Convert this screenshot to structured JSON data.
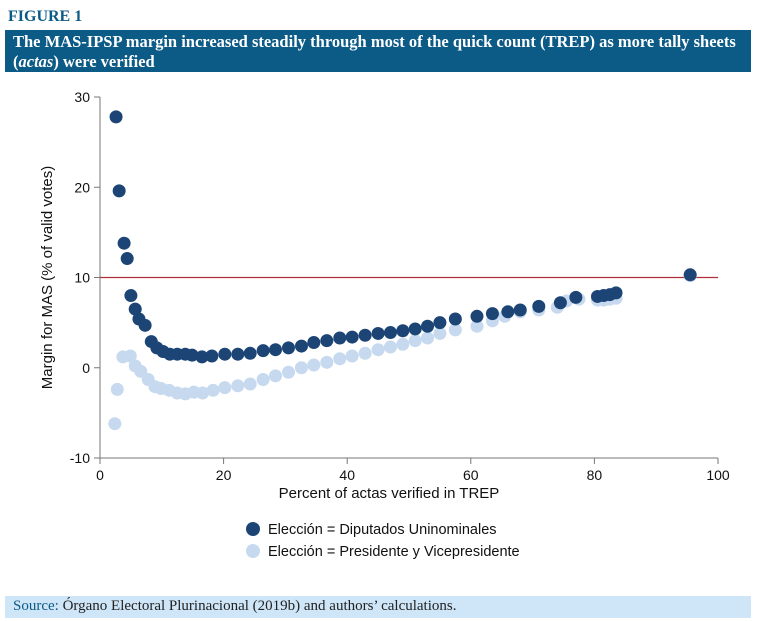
{
  "figure_label": "FIGURE 1",
  "title_part1": "The MAS-IPSP margin increased steadily through most of the quick count (TREP) as more tally sheets (",
  "title_italic": "actas",
  "title_part2": ") were verified",
  "source_label": "Source:",
  "source_text": " Órgano Electoral Plurinacional (2019b) and authors’ calculations.",
  "chart_data": {
    "type": "scatter",
    "xlabel": "Percent of actas verified in TREP",
    "ylabel": "Margin for MAS (% of valid votes)",
    "xlim": [
      0,
      100
    ],
    "ylim": [
      -10,
      30
    ],
    "xticks": [
      0,
      20,
      40,
      60,
      80,
      100
    ],
    "yticks": [
      -10,
      0,
      10,
      20,
      30
    ],
    "reference_line": {
      "y": 10,
      "color": "#b0303a"
    },
    "legend_position": "bottom",
    "series": [
      {
        "name": "Elección = Diputados Uninominales",
        "color": "#1c4576",
        "x": [
          2.6,
          3.1,
          3.9,
          4.4,
          5,
          5.7,
          6.3,
          7.3,
          8.3,
          9.2,
          10.2,
          11.3,
          12.5,
          13.8,
          14.9,
          16.5,
          18.1,
          20.2,
          22.3,
          24.3,
          26.4,
          28.4,
          30.5,
          32.6,
          34.6,
          36.7,
          38.8,
          40.8,
          42.9,
          45,
          47,
          49,
          51,
          53,
          55,
          57.5,
          61,
          63.5,
          66,
          68,
          71,
          74.5,
          77,
          80.5,
          81.5,
          82.5,
          83.5,
          95.5
        ],
        "y": [
          27.8,
          19.6,
          13.8,
          12.1,
          8,
          6.5,
          5.4,
          4.7,
          2.9,
          2.2,
          1.8,
          1.5,
          1.5,
          1.5,
          1.4,
          1.2,
          1.3,
          1.5,
          1.5,
          1.6,
          1.9,
          2,
          2.2,
          2.4,
          2.8,
          3,
          3.3,
          3.4,
          3.6,
          3.8,
          3.9,
          4.1,
          4.3,
          4.6,
          5,
          5.4,
          5.7,
          6,
          6.2,
          6.4,
          6.8,
          7.2,
          7.8,
          7.9,
          8,
          8.1,
          8.3,
          10.3
        ]
      },
      {
        "name": "Elección = Presidente y Vicepresidente",
        "color": "#c6d9ef",
        "x": [
          2.4,
          2.8,
          3.7,
          4.9,
          5.7,
          6.6,
          7.8,
          8.9,
          9.9,
          11.2,
          12.5,
          13.8,
          15.2,
          16.6,
          18.3,
          20.2,
          22.3,
          24.3,
          26.4,
          28.4,
          30.5,
          32.6,
          34.6,
          36.7,
          38.8,
          40.8,
          42.9,
          45,
          47,
          49,
          51,
          53,
          55,
          57.5,
          61,
          63.5,
          65.5,
          68,
          71,
          74,
          75.5,
          77.5,
          80.5,
          81.5,
          82.5,
          83.5,
          95.5
        ],
        "y": [
          -6.2,
          -2.4,
          1.2,
          1.3,
          0.2,
          -0.4,
          -1.3,
          -2.1,
          -2.3,
          -2.5,
          -2.8,
          -2.9,
          -2.7,
          -2.8,
          -2.5,
          -2.2,
          -2,
          -1.8,
          -1.3,
          -0.9,
          -0.5,
          0,
          0.3,
          0.6,
          1,
          1.3,
          1.6,
          2,
          2.3,
          2.6,
          3,
          3.3,
          3.8,
          4.2,
          4.6,
          5.2,
          5.7,
          6.2,
          6.4,
          6.7,
          7.4,
          7.6,
          7.5,
          7.5,
          7.6,
          7.7,
          10.2
        ]
      }
    ]
  }
}
